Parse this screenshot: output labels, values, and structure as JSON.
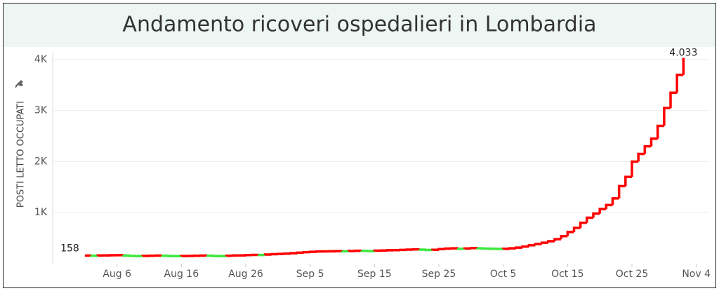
{
  "chart_data": {
    "type": "step-line",
    "title": "Andamento ricoveri ospedalieri in Lombardia",
    "y_label": "POSTI LETTO OCCUPATI",
    "x": [
      "Aug 1",
      "Aug 2",
      "Aug 3",
      "Aug 4",
      "Aug 5",
      "Aug 6",
      "Aug 7",
      "Aug 8",
      "Aug 9",
      "Aug 10",
      "Aug 11",
      "Aug 12",
      "Aug 13",
      "Aug 14",
      "Aug 15",
      "Aug 16",
      "Aug 17",
      "Aug 18",
      "Aug 19",
      "Aug 20",
      "Aug 21",
      "Aug 22",
      "Aug 23",
      "Aug 24",
      "Aug 25",
      "Aug 26",
      "Aug 27",
      "Aug 28",
      "Aug 29",
      "Aug 30",
      "Aug 31",
      "Sep 1",
      "Sep 2",
      "Sep 3",
      "Sep 4",
      "Sep 5",
      "Sep 6",
      "Sep 7",
      "Sep 8",
      "Sep 9",
      "Sep 10",
      "Sep 11",
      "Sep 12",
      "Sep 13",
      "Sep 14",
      "Sep 15",
      "Sep 16",
      "Sep 17",
      "Sep 18",
      "Sep 19",
      "Sep 20",
      "Sep 21",
      "Sep 22",
      "Sep 23",
      "Sep 24",
      "Sep 25",
      "Sep 26",
      "Sep 27",
      "Sep 28",
      "Sep 29",
      "Sep 30",
      "Oct 1",
      "Oct 2",
      "Oct 3",
      "Oct 4",
      "Oct 5",
      "Oct 6",
      "Oct 7",
      "Oct 8",
      "Oct 9",
      "Oct 10",
      "Oct 11",
      "Oct 12",
      "Oct 13",
      "Oct 14",
      "Oct 15",
      "Oct 16",
      "Oct 17",
      "Oct 18",
      "Oct 19",
      "Oct 20",
      "Oct 21",
      "Oct 22",
      "Oct 23",
      "Oct 24",
      "Oct 25",
      "Oct 26",
      "Oct 27",
      "Oct 28",
      "Oct 29",
      "Oct 30",
      "Oct 31",
      "Nov 1",
      "Nov 2"
    ],
    "values": [
      158,
      155,
      160,
      162,
      165,
      166,
      160,
      152,
      150,
      152,
      155,
      158,
      154,
      150,
      148,
      150,
      152,
      155,
      158,
      156,
      150,
      148,
      155,
      160,
      162,
      168,
      172,
      170,
      178,
      185,
      190,
      195,
      205,
      215,
      225,
      232,
      238,
      240,
      242,
      245,
      242,
      248,
      252,
      250,
      245,
      255,
      258,
      262,
      265,
      270,
      275,
      280,
      275,
      268,
      272,
      285,
      295,
      300,
      292,
      298,
      305,
      300,
      295,
      292,
      288,
      290,
      300,
      315,
      335,
      360,
      385,
      410,
      440,
      480,
      540,
      620,
      700,
      800,
      900,
      980,
      1070,
      1150,
      1280,
      1520,
      1700,
      2000,
      2150,
      2300,
      2450,
      2700,
      3050,
      3350,
      3700,
      4033
    ],
    "value_labels": [
      "158",
      null,
      null,
      null,
      null,
      null,
      null,
      null,
      null,
      null,
      null,
      null,
      null,
      null,
      null,
      null,
      null,
      null,
      null,
      null,
      null,
      null,
      null,
      null,
      null,
      null,
      null,
      null,
      null,
      null,
      null,
      null,
      null,
      null,
      null,
      null,
      null,
      null,
      null,
      null,
      null,
      null,
      null,
      null,
      null,
      null,
      null,
      null,
      null,
      null,
      null,
      null,
      null,
      null,
      null,
      null,
      null,
      null,
      null,
      null,
      null,
      null,
      null,
      null,
      null,
      null,
      null,
      null,
      null,
      null,
      null,
      null,
      null,
      null,
      null,
      null,
      null,
      null,
      null,
      null,
      null,
      null,
      null,
      null,
      null,
      null,
      null,
      null,
      null,
      null,
      null,
      null,
      null,
      "4.033"
    ],
    "increase_color": "#ff0000",
    "decrease_color": "#3de83d",
    "xlim": [
      "Jul 27",
      "Nov 6"
    ],
    "xticks": [
      "Aug 6",
      "Aug 16",
      "Aug 26",
      "Sep 5",
      "Sep 15",
      "Sep 25",
      "Oct 5",
      "Oct 15",
      "Oct 25",
      "Nov 4"
    ],
    "ylim": [
      0,
      4150
    ],
    "yticks": [
      {
        "value": 1000,
        "label": "1K"
      },
      {
        "value": 2000,
        "label": "2K"
      },
      {
        "value": 3000,
        "label": "3K"
      },
      {
        "value": 4000,
        "label": "4K"
      }
    ],
    "grid": true
  }
}
